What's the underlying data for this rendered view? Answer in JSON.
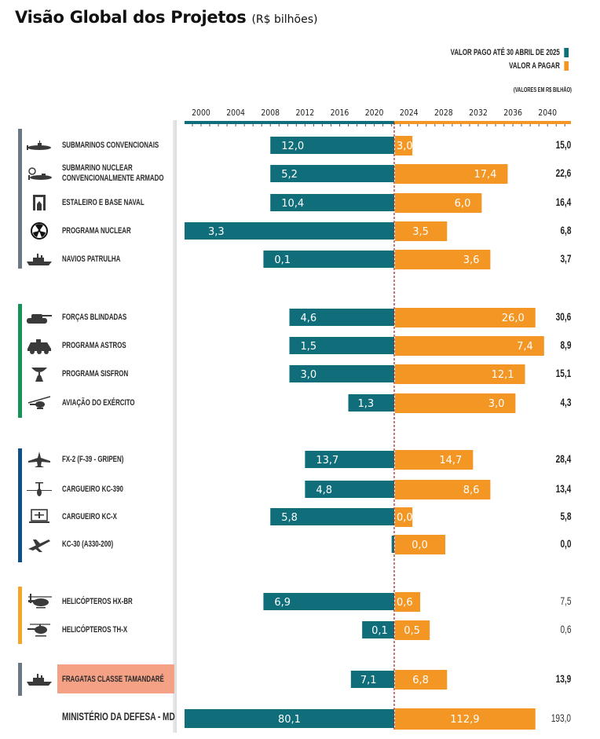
{
  "title": "Visão Global dos Projetos",
  "subtitle": "(R$ bilhões)",
  "legend": {
    "paid_label": "VALOR PAGO ATÉ 30 ABRIL DE 2025",
    "due_label": "VALOR A PAGAR",
    "note": "(VALORES EM R$ BILHÃO)"
  },
  "colors": {
    "paid": "#0f6e7a",
    "due": "#f39623",
    "group_navy": "#6b7883",
    "group_army": "#169158",
    "group_airforce": "#0f4f8a",
    "group_helo": "#f4a428",
    "highlight": "#f4a186",
    "divider": "#a3242a"
  },
  "chart_data": {
    "type": "bar",
    "title": "Visão Global dos Projetos (R$ bilhões)",
    "xlabel": "",
    "ylabel": "",
    "orientation": "horizontal-timeline",
    "x_axis": {
      "ticks": [
        "2000",
        "2004",
        "2008",
        "2012",
        "2016",
        "2020",
        "2024",
        "2028",
        "2032",
        "2036",
        "2040"
      ],
      "range_years": [
        1998,
        2043
      ],
      "divider_year": 2022.3
    },
    "legend": [
      "VALOR PAGO ATÉ 30 ABRIL DE 2025",
      "VALOR A PAGAR"
    ],
    "legend_position": "top-right",
    "series_names": [
      "Valor pago",
      "Valor a pagar",
      "Total"
    ],
    "rows": [
      {
        "group": "navy",
        "name": "SUBMARINOS CONVENCIONAIS",
        "icon": "submarine-icon",
        "paid": "12,0",
        "due": "3,0",
        "total": "15,0",
        "start_year": 2008.0,
        "end_year": 2024.4
      },
      {
        "group": "navy",
        "name": "SUBMARINO NUCLEAR|CONVENCIONALMENTE ARMADO",
        "icon": "nuclear-submarine-icon",
        "paid": "5,2",
        "due": "17,4",
        "total": "22,6",
        "start_year": 2008.0,
        "end_year": 2035.4
      },
      {
        "group": "navy",
        "name": "ESTALEIRO E BASE NAVAL",
        "icon": "shipyard-icon",
        "paid": "10,4",
        "due": "6,0",
        "total": "16,4",
        "start_year": 2008.0,
        "end_year": 2032.4
      },
      {
        "group": "navy",
        "name": "PROGRAMA NUCLEAR",
        "icon": "radiation-icon",
        "paid": "3,3",
        "due": "3,5",
        "total": "6,8",
        "start_year": 1998.0,
        "end_year": 2028.4
      },
      {
        "group": "navy",
        "name": "NAVIOS PATRULHA",
        "icon": "patrol-ship-icon",
        "paid": "0,1",
        "due": "3,6",
        "total": "3,7",
        "start_year": 2007.2,
        "end_year": 2033.4
      },
      {
        "group": "army",
        "name": "FORÇAS BLINDADAS",
        "icon": "tank-icon",
        "paid": "4,6",
        "due": "26,0",
        "total": "30,6",
        "start_year": 2010.2,
        "end_year": 2038.6
      },
      {
        "group": "army",
        "name": "PROGRAMA ASTROS",
        "icon": "armored-vehicle-icon",
        "paid": "1,5",
        "due": "7,4",
        "total": "8,9",
        "start_year": 2010.2,
        "end_year": 2039.6
      },
      {
        "group": "army",
        "name": "PROGRAMA SISFRON",
        "icon": "radar-dish-icon",
        "paid": "3,0",
        "due": "12,1",
        "total": "15,1",
        "start_year": 2010.2,
        "end_year": 2037.4
      },
      {
        "group": "army",
        "name": "AVIAÇÃO DO EXÉRCITO",
        "icon": "attack-helicopter-icon",
        "paid": "1,3",
        "due": "3,0",
        "total": "4,3",
        "start_year": 2017.0,
        "end_year": 2036.3
      },
      {
        "group": "airforce",
        "name": "FX-2 (F-39 - GRIPEN)",
        "icon": "fighter-jet-icon",
        "paid": "13,7",
        "due": "14,7",
        "total": "28,4",
        "start_year": 2012.0,
        "end_year": 2031.4
      },
      {
        "group": "airforce",
        "name": "CARGUEIRO KC-390",
        "icon": "cargo-plane-icon",
        "paid": "4,8",
        "due": "8,6",
        "total": "13,4",
        "start_year": 2012.0,
        "end_year": 2033.4
      },
      {
        "group": "airforce",
        "name": "CARGUEIRO KC-X",
        "icon": "laptop-plane-icon",
        "paid": "5,8",
        "due": "0,0",
        "total": "5,8",
        "start_year": 2008.0,
        "end_year": 2024.4
      },
      {
        "group": "airforce",
        "name": "KC-30 (A330-200)",
        "icon": "airliner-icon",
        "paid": "0,0",
        "due": "0,0",
        "total": "0,0",
        "start_year": 2022.0,
        "end_year": 2028.2
      },
      {
        "group": "helo",
        "name": "HELICÓPTEROS HX-BR",
        "icon": "heavy-helicopter-icon",
        "paid": "6,9",
        "due": "0,6",
        "total": "7,5",
        "start_year": 2007.2,
        "end_year": 2025.3
      },
      {
        "group": "helo",
        "name": "HELICÓPTEROS TH-X",
        "icon": "light-helicopter-icon",
        "paid": "0,1",
        "due": "0,5",
        "total": "0,6",
        "start_year": 2018.6,
        "end_year": 2026.4
      },
      {
        "group": "frigate",
        "name": "FRAGATAS CLASSE TAMANDARÉ",
        "icon": "frigate-icon",
        "paid": "7,1",
        "due": "6,8",
        "total": "13,9",
        "start_year": 2017.3,
        "end_year": 2028.4
      },
      {
        "group": "total",
        "name": "MINISTÉRIO DA DEFESA - MD",
        "icon": "",
        "paid": "80,1",
        "due": "112,9",
        "total": "193,0",
        "start_year": 1998.0,
        "end_year": 2038.6
      }
    ]
  }
}
